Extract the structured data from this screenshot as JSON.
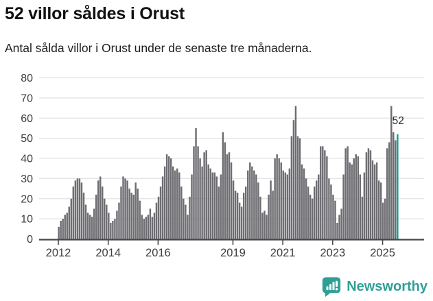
{
  "header": {
    "title": "52 villor såldes i Orust",
    "subtitle": "Antal sålda villor i Orust under de senaste tre månaderna."
  },
  "chart_data": {
    "type": "bar",
    "title": "52 villor såldes i Orust",
    "subtitle": "Antal sålda villor i Orust under de senaste tre månaderna.",
    "x_unit": "month",
    "x_start": "2012-01",
    "x_end": "2025-08",
    "ylim": [
      0,
      80
    ],
    "y_ticks": [
      0,
      10,
      20,
      30,
      40,
      50,
      60,
      70,
      80
    ],
    "x_tick_years": [
      2012,
      2014,
      2016,
      2019,
      2021,
      2023,
      2025
    ],
    "grid": "horizontal",
    "legend": "none",
    "values": [
      6,
      9,
      10,
      12,
      13,
      16,
      20,
      26,
      29,
      30,
      30,
      28,
      23,
      17,
      13,
      12,
      11,
      15,
      22,
      29,
      31,
      26,
      20,
      17,
      13,
      8,
      9,
      10,
      14,
      18,
      26,
      31,
      30,
      29,
      25,
      23,
      22,
      28,
      25,
      19,
      12,
      10,
      11,
      12,
      15,
      11,
      13,
      18,
      21,
      26,
      31,
      36,
      42,
      41,
      40,
      36,
      34,
      35,
      33,
      26,
      20,
      17,
      12,
      21,
      32,
      46,
      55,
      46,
      40,
      36,
      43,
      44,
      37,
      35,
      33,
      33,
      31,
      26,
      32,
      53,
      48,
      42,
      43,
      38,
      29,
      24,
      23,
      18,
      16,
      23,
      26,
      34,
      38,
      36,
      34,
      32,
      28,
      21,
      13,
      14,
      12,
      22,
      29,
      24,
      40,
      42,
      40,
      38,
      34,
      33,
      32,
      35,
      51,
      59,
      66,
      51,
      50,
      37,
      35,
      30,
      26,
      22,
      20,
      26,
      29,
      32,
      46,
      46,
      44,
      41,
      30,
      27,
      22,
      19,
      8,
      12,
      15,
      32,
      45,
      46,
      38,
      37,
      40,
      42,
      41,
      32,
      21,
      33,
      43,
      45,
      44,
      39,
      37,
      38,
      29,
      28,
      18,
      20,
      45,
      48,
      66,
      53,
      49,
      52
    ],
    "highlight_last": true,
    "annotation": {
      "text": "52",
      "value": 52
    },
    "colors": {
      "bar": "#6d6d72",
      "highlight": "#13a08f",
      "grid": "#e3e3e3",
      "axis": "#484848",
      "text": "#3d3d3d",
      "annotation": "#2b2b2b"
    }
  },
  "footer": {
    "brand": "Newsworthy",
    "brand_color": "#2f9f96"
  }
}
